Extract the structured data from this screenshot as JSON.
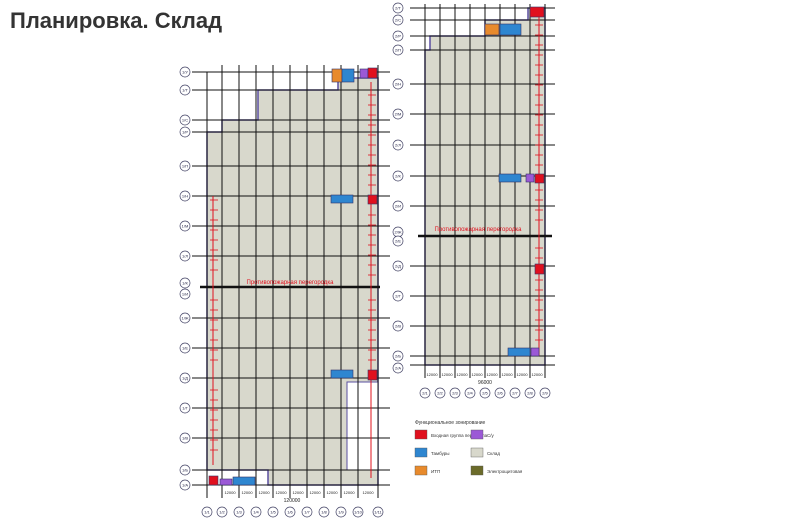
{
  "title": "Планировка. Склад",
  "plan_left": {
    "corridor_label": "Противопожарная перегородка",
    "bottom_dim": "120000",
    "bay_dim": "12000",
    "col_labels": [
      "1/1",
      "1/2",
      "1/3",
      "1/4",
      "1/5",
      "1/6",
      "1/7",
      "1/8",
      "1/9",
      "1/10",
      "1/11"
    ],
    "row_labels": [
      "1/А",
      "1/Б",
      "1/В",
      "1/Г",
      "1/Д",
      "1/Е",
      "1/Ж",
      "1/И",
      "1/К",
      "1/Л",
      "1/М",
      "1/Н",
      "1/П",
      "1/Р",
      "1/С",
      "1/Т",
      "1/У"
    ]
  },
  "plan_right": {
    "corridor_label": "Противопожарная перегородка",
    "bottom_dim": "96000",
    "bay_dim": "12000",
    "col_labels": [
      "2/1",
      "2/2",
      "2/3",
      "2/4",
      "2/5",
      "2/6",
      "2/7",
      "2/8",
      "2/9"
    ],
    "row_labels": [
      "2/А",
      "2/Б",
      "2/В",
      "2/Г",
      "2/Д",
      "2/Е",
      "2/Ж",
      "2/И",
      "2/К",
      "2/Л",
      "2/М",
      "2/Н",
      "2/П",
      "2/Р",
      "2/С",
      "2/Т"
    ]
  },
  "legend": {
    "title": "Функциональное зонирование",
    "items": [
      {
        "label": "Входная группа персонала",
        "color": "#e0101e"
      },
      {
        "label": "С/у",
        "color": "#9b59d6"
      },
      {
        "label": "Тамбуры",
        "color": "#2e86d0"
      },
      {
        "label": "Склад",
        "color": "#d8d8cc"
      },
      {
        "label": "ИТП",
        "color": "#e88a2c"
      },
      {
        "label": "Электрощитовая",
        "color": "#6b6b2a"
      }
    ]
  }
}
